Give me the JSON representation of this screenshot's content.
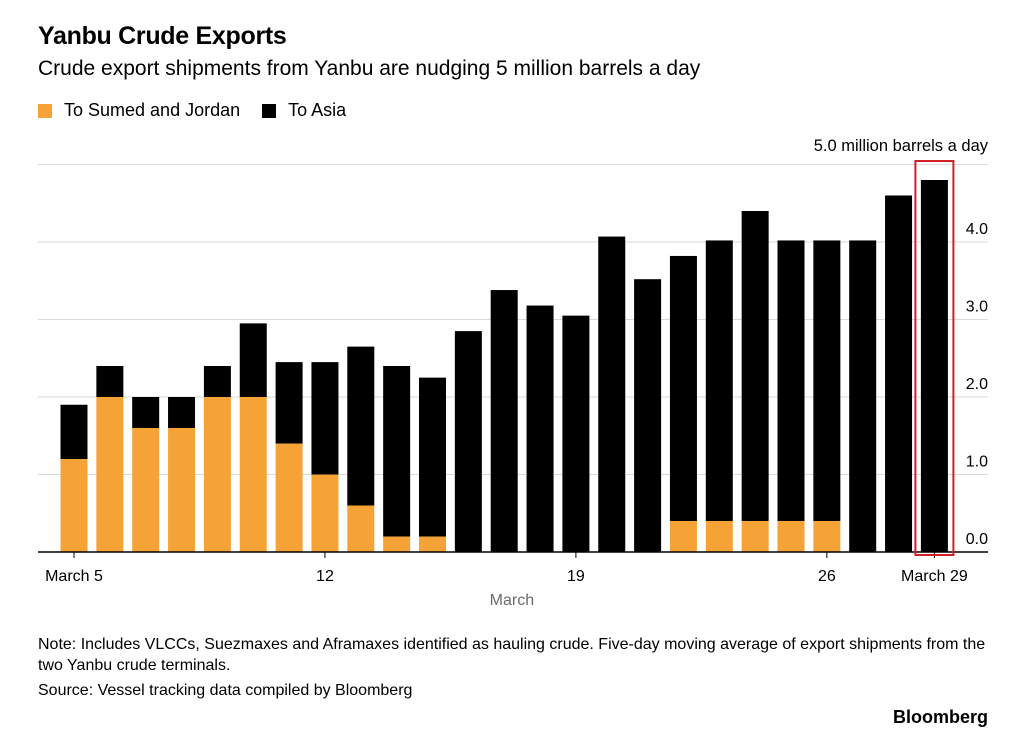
{
  "title": "Yanbu Crude Exports",
  "subtitle": "Crude export shipments from Yanbu are nudging 5 million barrels a day",
  "legend": [
    {
      "label": "To Sumed and Jordan",
      "color": "#f5a337"
    },
    {
      "label": "To Asia",
      "color": "#000000"
    }
  ],
  "unit_label": "5.0 million barrels a day",
  "note": "Note: Includes VLCCs, Suezmaxes and Aframaxes identified as hauling crude. Five-day moving average of export shipments from the two Yanbu crude terminals.",
  "source": "Source: Vessel tracking data compiled by Bloomberg",
  "brand": "Bloomberg",
  "chart_data": {
    "type": "bar",
    "stacked": true,
    "xlabel": "March",
    "ylabel": "",
    "ylim": [
      0,
      5
    ],
    "y_ticks": [
      "0.0",
      "1.0",
      "2.0",
      "3.0",
      "4.0"
    ],
    "x_tick_labels": [
      {
        "day": 5,
        "label": "March 5"
      },
      {
        "day": 12,
        "label": "12"
      },
      {
        "day": 19,
        "label": "19"
      },
      {
        "day": 26,
        "label": "26"
      },
      {
        "day": 29,
        "label": "March 29"
      }
    ],
    "grid": true,
    "highlight_day": 29,
    "categories": [
      5,
      6,
      7,
      8,
      9,
      10,
      11,
      12,
      13,
      14,
      15,
      16,
      17,
      18,
      19,
      20,
      21,
      22,
      23,
      24,
      25,
      26,
      27,
      28,
      29
    ],
    "series": [
      {
        "name": "To Sumed and Jordan",
        "color": "#f5a337",
        "values": [
          1.2,
          2.0,
          1.6,
          1.6,
          2.0,
          2.0,
          1.4,
          1.0,
          0.6,
          0.2,
          0.2,
          0,
          0,
          0,
          0,
          0,
          0,
          0.4,
          0.4,
          0.4,
          0.4,
          0.4,
          0,
          0,
          0
        ]
      },
      {
        "name": "To Asia",
        "color": "#000000",
        "values": [
          0.7,
          0.4,
          0.4,
          0.4,
          0.4,
          0.95,
          1.05,
          1.45,
          2.05,
          2.2,
          2.05,
          2.85,
          3.38,
          3.18,
          3.05,
          4.07,
          3.52,
          3.42,
          3.62,
          4.0,
          3.62,
          3.62,
          4.02,
          4.6,
          4.8
        ]
      }
    ]
  }
}
